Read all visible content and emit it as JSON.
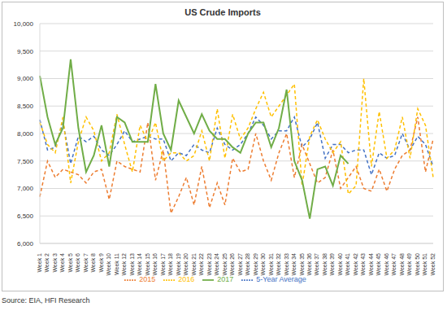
{
  "chart_data": {
    "type": "line",
    "title": "US Crude Imports",
    "annotations": [
      "Source: EIA, HFI Research"
    ],
    "categories": [
      "Week 1",
      "Week 2",
      "Week 3",
      "Week 4",
      "Week 5",
      "Week 6",
      "Week 7",
      "Week 8",
      "Week 9",
      "Week 10",
      "Week 11",
      "Week 12",
      "Week 13",
      "Week 14",
      "Week 15",
      "Week 16",
      "Week 17",
      "Week 18",
      "Week 19",
      "Week 20",
      "Week 21",
      "Week 22",
      "Week 23",
      "Week 24",
      "Week 25",
      "Week 26",
      "Week 27",
      "Week 28",
      "Week 29",
      "Week 30",
      "Week 31",
      "Week 32",
      "Week 33",
      "Week 34",
      "Week 35",
      "Week 36",
      "Week 37",
      "Week 38",
      "Week 39",
      "Week 40",
      "Week 41",
      "Week 42",
      "Week 43",
      "Week 44",
      "Week 45",
      "Week 46",
      "Week 47",
      "Week 48",
      "Week 49",
      "Week 50",
      "Week 51",
      "Week 52"
    ],
    "series": [
      {
        "name": "5-Year Average",
        "color": "#4472c4",
        "line_style": "dashed",
        "values": [
          8250,
          7700,
          7750,
          8200,
          7450,
          7950,
          7850,
          7950,
          7700,
          7600,
          7800,
          8050,
          7850,
          7900,
          7950,
          7900,
          7900,
          7500,
          7650,
          7600,
          7800,
          7700,
          7650,
          8100,
          7800,
          7700,
          7800,
          8000,
          8300,
          8150,
          7900,
          8050,
          8050,
          8300,
          7750,
          7900,
          8200,
          7550,
          7800,
          7800,
          7650,
          7700,
          7700,
          7250,
          7650,
          7550,
          7600,
          8000,
          7700,
          7950,
          7800,
          7400
        ]
      },
      {
        "name": "2015",
        "color": "#ed7d31",
        "line_style": "dashed",
        "values": [
          6850,
          7500,
          7200,
          7350,
          7300,
          7250,
          7100,
          7300,
          7350,
          6800,
          7500,
          7400,
          7350,
          7300,
          8200,
          7150,
          7700,
          6550,
          6850,
          7200,
          6700,
          7400,
          6650,
          7100,
          6700,
          7550,
          7300,
          7350,
          8000,
          7500,
          7150,
          7650,
          8000,
          7200,
          7800,
          7450,
          7100,
          7200,
          7700,
          7000,
          7200,
          7400,
          7000,
          6950,
          7350,
          6950,
          7350,
          7600,
          7700,
          8300,
          7300,
          7900
        ]
      },
      {
        "name": "2016",
        "color": "#ffc000",
        "line_style": "dashed",
        "values": [
          8200,
          7800,
          7650,
          8300,
          7100,
          7850,
          8300,
          8050,
          7500,
          7650,
          8350,
          7800,
          7300,
          8150,
          7850,
          8200,
          7500,
          7650,
          7650,
          7500,
          7600,
          8050,
          7500,
          8450,
          7550,
          8350,
          7900,
          8100,
          8450,
          8750,
          8300,
          8500,
          8700,
          8900,
          7050,
          7950,
          8250,
          7900,
          7650,
          7850,
          6900,
          7050,
          9000,
          7400,
          8400,
          7550,
          7700,
          8300,
          7550,
          8450,
          8150,
          7200
        ]
      },
      {
        "name": "2017",
        "color": "#70ad47",
        "line_style": "solid",
        "values": [
          9050,
          8300,
          7800,
          8100,
          9350,
          8100,
          7300,
          7600,
          8150,
          7400,
          8300,
          8200,
          7850,
          7850,
          7850,
          8900,
          8000,
          7700,
          8600,
          8300,
          8000,
          8350,
          8050,
          7900,
          7900,
          7750,
          7650,
          8000,
          8200,
          8200,
          7750,
          8100,
          8800,
          7500,
          7150,
          6450,
          7350,
          7400,
          7050,
          7600,
          7450,
          null,
          null,
          null,
          null,
          null,
          null,
          null,
          null,
          null,
          null,
          null
        ]
      }
    ],
    "ylim": [
      6000,
      10000
    ],
    "yticks": [
      {
        "value": 6000,
        "label": "6,000"
      },
      {
        "value": 6500,
        "label": "6,500"
      },
      {
        "value": 7000,
        "label": "7,000"
      },
      {
        "value": 7500,
        "label": "7,500"
      },
      {
        "value": 8000,
        "label": "8,000"
      },
      {
        "value": 8500,
        "label": "8,500"
      },
      {
        "value": 9000,
        "label": "9,000"
      },
      {
        "value": 9500,
        "label": "9,500"
      },
      {
        "value": 10000,
        "label": "10,000"
      }
    ],
    "grid": true
  }
}
